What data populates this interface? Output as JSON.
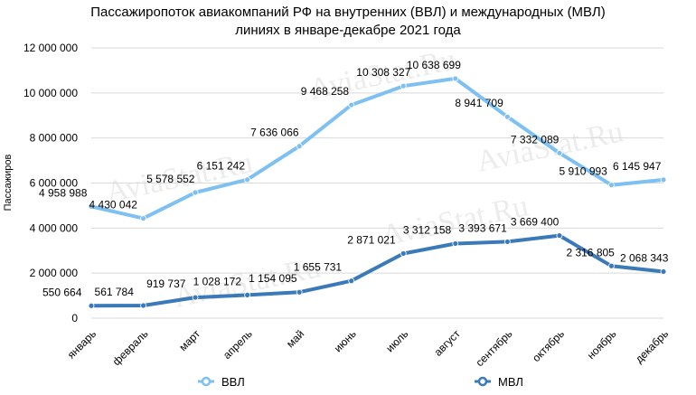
{
  "chart_data": {
    "type": "line",
    "title_lines": [
      "Пассажиропоток авиакомпаний РФ на внутренних (ВВЛ) и международных (МВЛ)",
      "линиях в январе-декабре 2021 года"
    ],
    "ylabel": "Пассажиров",
    "xlabel": "",
    "ylim": [
      0,
      12000000
    ],
    "yticks": [
      0,
      2000000,
      4000000,
      6000000,
      8000000,
      10000000,
      12000000
    ],
    "ytick_labels": [
      "0",
      "2 000 000",
      "4 000 000",
      "6 000 000",
      "8 000 000",
      "10 000 000",
      "12 000 000"
    ],
    "categories": [
      "январь",
      "февраль",
      "март",
      "апрель",
      "май",
      "июнь",
      "июль",
      "август",
      "сентябрь",
      "октябрь",
      "ноябрь",
      "декабрь"
    ],
    "grid": true,
    "legend_position": "bottom",
    "series": [
      {
        "name": "ВВЛ",
        "color": "#7ec0f2",
        "values": [
          4958988,
          4430042,
          5578552,
          6151242,
          7636066,
          9468258,
          10308327,
          10638699,
          8941709,
          7332089,
          5910993,
          6145947
        ],
        "labels": [
          "4 958 988",
          "4 430 042",
          "5 578 552",
          "6 151 242",
          "7 636 066",
          "9 468 258",
          "10 308 327",
          "10 638 699",
          "8 941 709",
          "7 332 089",
          "5 910 993",
          "6 145 947"
        ]
      },
      {
        "name": "МВЛ",
        "color": "#3a7ab8",
        "values": [
          550664,
          561784,
          919737,
          1028172,
          1154095,
          1655731,
          2871021,
          3312158,
          3393671,
          3669400,
          2316805,
          2068343
        ],
        "labels": [
          "550 664",
          "561 784",
          "919 737",
          "1 028 172",
          "1 154 095",
          "1 655 731",
          "2 871 021",
          "3 312 158",
          "3 393 671",
          "3 669 400",
          "2 316 805",
          "2 068 343"
        ]
      }
    ]
  },
  "watermark": "AviaStat.Ru"
}
